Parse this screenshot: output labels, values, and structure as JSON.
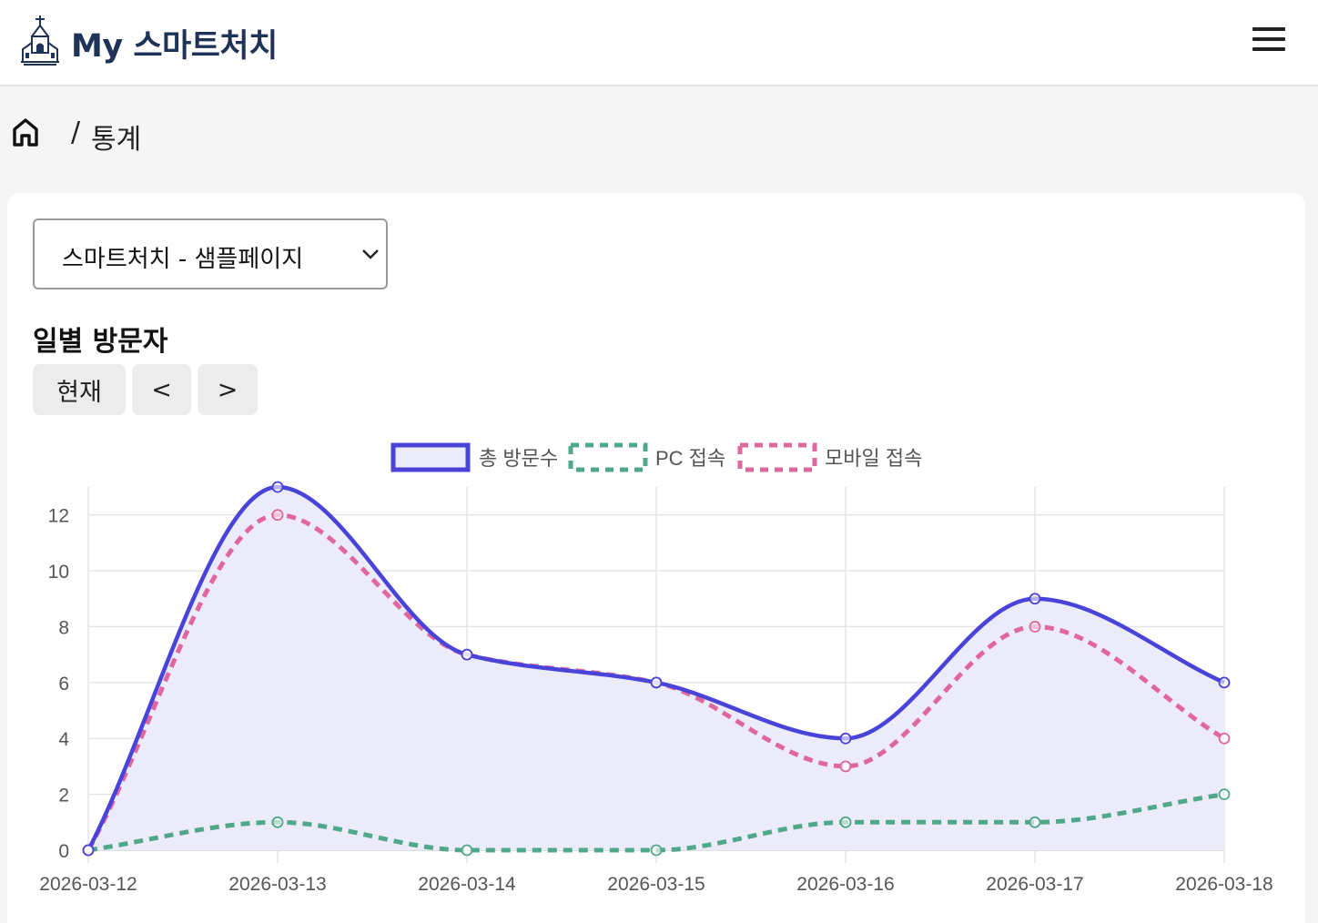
{
  "header": {
    "title": "My 스마트처치",
    "logo_icon": "church-icon",
    "menu_icon": "hamburger-menu-icon"
  },
  "breadcrumb": {
    "home_icon": "home-icon",
    "separator": "/",
    "current": "통계"
  },
  "selector": {
    "value": "스마트처치 - 샘플페이지",
    "icon": "chevron-down-icon"
  },
  "section": {
    "title": "일별 방문자",
    "buttons": {
      "now": "현재",
      "prev": "<",
      "next": ">"
    }
  },
  "colors": {
    "total": "#4a43d9",
    "total_fill": "#ecebf9",
    "pc": "#4fa889",
    "mobile": "#e0679e",
    "brand": "#1f3257"
  },
  "chart_data": {
    "type": "line",
    "x": [
      "2026-03-12",
      "2026-03-13",
      "2026-03-14",
      "2026-03-15",
      "2026-03-16",
      "2026-03-17",
      "2026-03-18"
    ],
    "series": [
      {
        "name": "총 방문수",
        "values": [
          0,
          13,
          7,
          6,
          4,
          9,
          6
        ],
        "style": "solid-filled"
      },
      {
        "name": "PC 접속",
        "values": [
          0,
          1,
          0,
          0,
          1,
          1,
          2
        ],
        "style": "dashed"
      },
      {
        "name": "모바일 접속",
        "values": [
          0,
          12,
          7,
          6,
          3,
          8,
          4
        ],
        "style": "dashed"
      }
    ],
    "yticks": [
      0,
      2,
      4,
      6,
      8,
      10,
      12
    ],
    "ylim": [
      0,
      13
    ],
    "grid": true,
    "legend": "top-center"
  }
}
